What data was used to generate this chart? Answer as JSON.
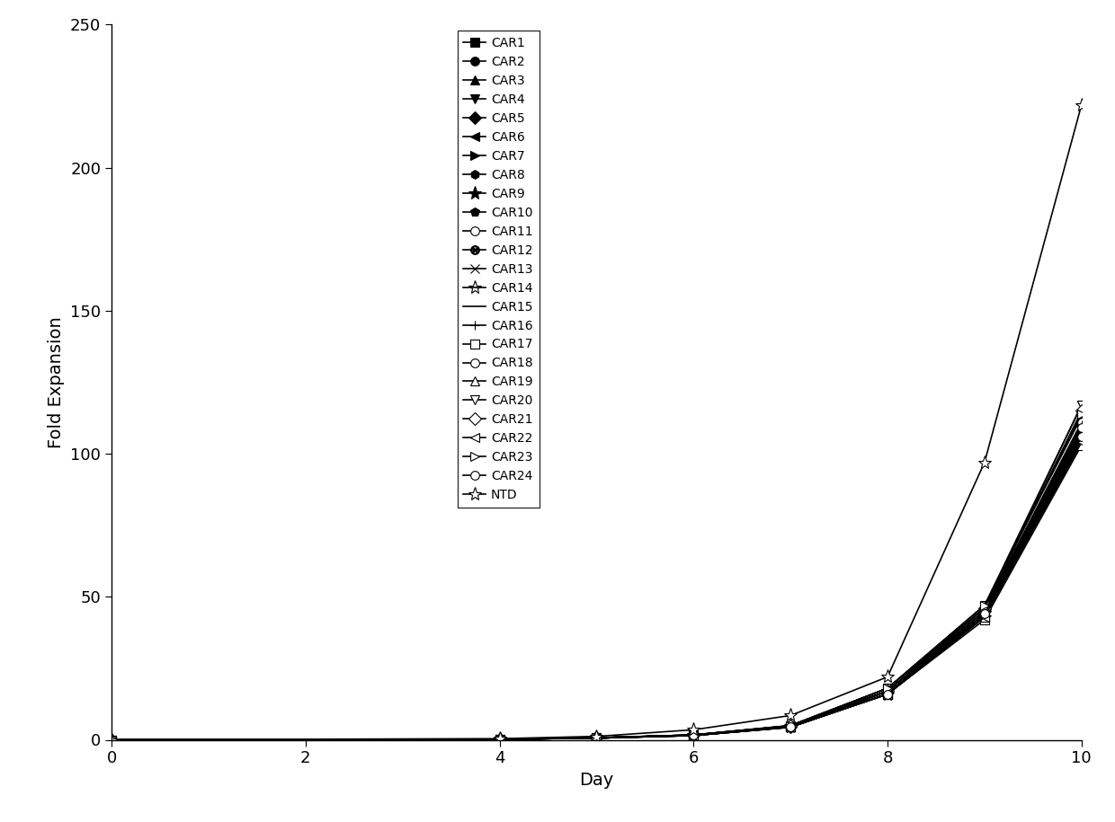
{
  "days": [
    0,
    4,
    5,
    6,
    7,
    8,
    9,
    10
  ],
  "series": {
    "CAR1": [
      0,
      0.2,
      0.6,
      1.5,
      4.5,
      16,
      43,
      105
    ],
    "CAR2": [
      0,
      0.2,
      0.6,
      1.6,
      4.8,
      17,
      45,
      108
    ],
    "CAR3": [
      0,
      0.2,
      0.7,
      1.6,
      4.6,
      16,
      44,
      106
    ],
    "CAR4": [
      0,
      0.2,
      0.7,
      1.7,
      4.9,
      18,
      46,
      117
    ],
    "CAR5": [
      0,
      0.2,
      0.7,
      1.6,
      4.7,
      17,
      45,
      110
    ],
    "CAR6": [
      0,
      0.2,
      0.6,
      1.5,
      4.4,
      16,
      43,
      104
    ],
    "CAR7": [
      0,
      0.2,
      0.7,
      1.7,
      5.0,
      18,
      47,
      113
    ],
    "CAR8": [
      0,
      0.2,
      0.6,
      1.6,
      4.6,
      17,
      44,
      107
    ],
    "CAR9": [
      0,
      0.2,
      0.7,
      1.6,
      4.8,
      17,
      45,
      109
    ],
    "CAR10": [
      0,
      0.2,
      0.6,
      1.5,
      4.5,
      16,
      43,
      105
    ],
    "CAR11": [
      0,
      0.2,
      0.7,
      1.7,
      4.9,
      18,
      46,
      111
    ],
    "CAR12": [
      0,
      0.2,
      0.6,
      1.6,
      4.6,
      16,
      44,
      106
    ],
    "CAR13": [
      0,
      0.2,
      0.7,
      1.6,
      4.7,
      17,
      45,
      108
    ],
    "CAR14": [
      0,
      0.2,
      0.6,
      1.5,
      4.5,
      16,
      43,
      105
    ],
    "CAR15": [
      0,
      0.2,
      0.7,
      1.6,
      4.6,
      17,
      44,
      107
    ],
    "CAR16": [
      0,
      0.2,
      0.7,
      1.6,
      4.8,
      18,
      46,
      110
    ],
    "CAR17": [
      0,
      0.2,
      0.6,
      1.5,
      4.4,
      16,
      42,
      103
    ],
    "CAR18": [
      0,
      0.2,
      0.7,
      1.6,
      4.7,
      17,
      45,
      109
    ],
    "CAR19": [
      0,
      0.2,
      0.6,
      1.6,
      4.5,
      16,
      43,
      105
    ],
    "CAR20": [
      0,
      0.2,
      0.7,
      1.7,
      4.9,
      18,
      47,
      117
    ],
    "CAR21": [
      0,
      0.2,
      0.7,
      1.6,
      4.8,
      17,
      46,
      115
    ],
    "CAR22": [
      0,
      0.2,
      0.6,
      1.5,
      4.4,
      16,
      43,
      104
    ],
    "CAR23": [
      0,
      0.2,
      0.7,
      1.7,
      5.0,
      18,
      47,
      114
    ],
    "CAR24": [
      0,
      0.2,
      0.6,
      1.6,
      4.6,
      16,
      44,
      106
    ],
    "NTD": [
      0,
      0.4,
      1.2,
      3.5,
      8.5,
      22,
      97,
      222
    ]
  },
  "marker_styles": {
    "CAR1": {
      "marker": "s",
      "mfc": "black"
    },
    "CAR2": {
      "marker": "o",
      "mfc": "black"
    },
    "CAR3": {
      "marker": "^",
      "mfc": "black"
    },
    "CAR4": {
      "marker": "v",
      "mfc": "black"
    },
    "CAR5": {
      "marker": "D",
      "mfc": "black"
    },
    "CAR6": {
      "marker": "<",
      "mfc": "black"
    },
    "CAR7": {
      "marker": ">",
      "mfc": "black"
    },
    "CAR8": {
      "marker": "h",
      "mfc": "black"
    },
    "CAR9": {
      "marker": "*",
      "mfc": "black"
    },
    "CAR10": {
      "marker": "p",
      "mfc": "black"
    },
    "CAR11": {
      "marker": "o",
      "mfc": "white"
    },
    "CAR12": {
      "marker": "$\\otimes$",
      "mfc": "black"
    },
    "CAR13": {
      "marker": "x",
      "mfc": "black"
    },
    "CAR14": {
      "marker": "*",
      "mfc": "none"
    },
    "CAR15": {
      "marker": "None",
      "mfc": "none"
    },
    "CAR16": {
      "marker": "+",
      "mfc": "black"
    },
    "CAR17": {
      "marker": "s",
      "mfc": "white"
    },
    "CAR18": {
      "marker": "o",
      "mfc": "white"
    },
    "CAR19": {
      "marker": "^",
      "mfc": "white"
    },
    "CAR20": {
      "marker": "v",
      "mfc": "white"
    },
    "CAR21": {
      "marker": "D",
      "mfc": "white"
    },
    "CAR22": {
      "marker": "<",
      "mfc": "white"
    },
    "CAR23": {
      "marker": ">",
      "mfc": "white"
    },
    "CAR24": {
      "marker": "o",
      "mfc": "white"
    },
    "NTD": {
      "marker": "*",
      "mfc": "white"
    }
  },
  "xlabel": "Day",
  "ylabel": "Fold Expansion",
  "xlim": [
    0,
    10
  ],
  "ylim": [
    0,
    250
  ],
  "yticks": [
    0,
    50,
    100,
    150,
    200,
    250
  ],
  "xticks": [
    0,
    2,
    4,
    6,
    8,
    10
  ],
  "marker_size": 7,
  "star_size": 11,
  "line_width": 1.2,
  "legend_fontsize": 10,
  "axis_fontsize": 14,
  "tick_fontsize": 13
}
